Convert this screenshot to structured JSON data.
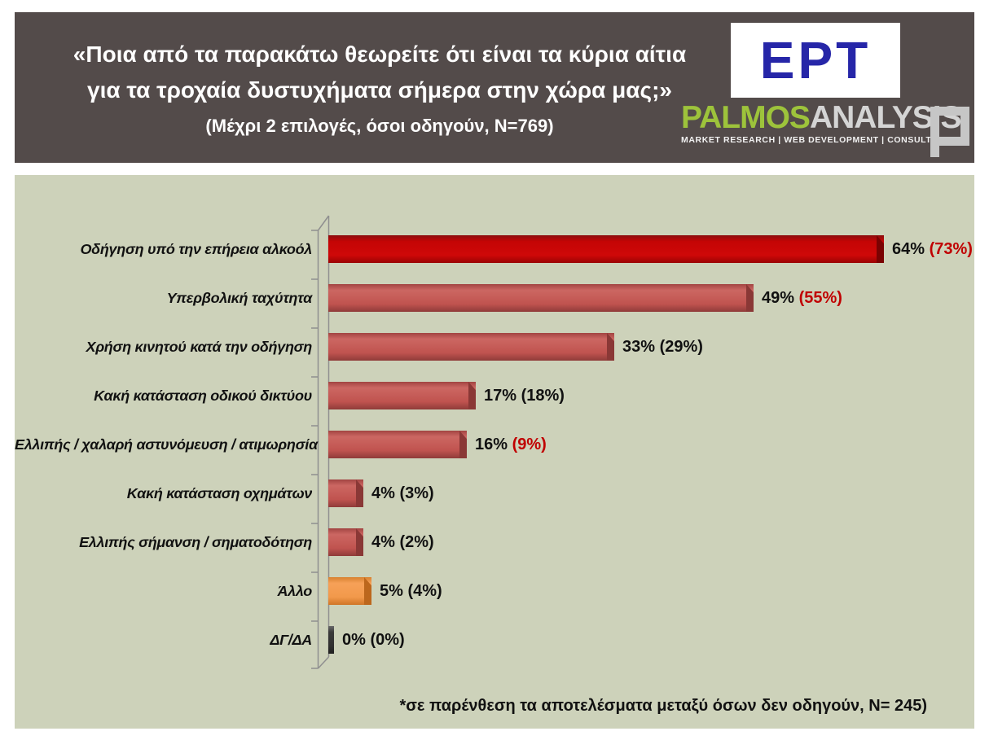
{
  "header": {
    "title_line1": "«Ποια από τα παρακάτω θεωρείτε ότι είναι τα κύρια αίτια",
    "title_line2": "για τα τροχαία δυστυχήματα σήμερα στην χώρα μας;»",
    "subtitle": "(Μέχρι 2 επιλογές, όσοι οδηγούν, N=769)"
  },
  "logos": {
    "ert_text": "ΕΡΤ",
    "palmos_part1": "PALMOS",
    "palmos_part2": "ANALYSIS",
    "palmos_tagline": "MARKET RESEARCH | WEB DEVELOPMENT | CONSULTING"
  },
  "colors": {
    "header_bg": "#534b4a",
    "panel_bg": "#cdd2ba",
    "ert_blue": "#2626a8",
    "palmos_green": "#9dc33b",
    "accent_red": "#c00000"
  },
  "chart_data": {
    "type": "bar",
    "orientation": "horizontal",
    "title": "",
    "xlabel": "",
    "ylabel": "",
    "categories": [
      "Οδήγηση υπό την επήρεια αλκοόλ",
      "Υπερβολική ταχύτητα",
      "Χρήση κινητού κατά την οδήγηση",
      "Κακή κατάσταση οδικού δικτύου",
      "Ελλιπής / χαλαρή αστυνόμευση / ατιμωρησία",
      "Κακή κατάσταση οχημάτων",
      "Ελλιπής σήμανση / σηματοδότηση",
      "Άλλο",
      "ΔΓ/ΔΑ"
    ],
    "series": [
      {
        "name": "Όσοι οδηγούν (N=769)",
        "values": [
          64,
          49,
          33,
          17,
          16,
          4,
          4,
          5,
          0
        ]
      },
      {
        "name": "Όσοι δεν οδηγούν (N=245), σε παρένθεση",
        "values": [
          73,
          55,
          29,
          18,
          9,
          3,
          2,
          4,
          0
        ]
      }
    ],
    "value_labels": [
      "64% (73%)",
      "49% (55%)",
      "33% (29%)",
      "17% (18%)",
      "16% (9%)",
      "4% (3%)",
      "4% (2%)",
      "5% (4%)",
      "0% (0%)"
    ],
    "paren_red_rows": [
      0,
      1,
      4
    ],
    "bar_color_keys": [
      "highlight",
      "default",
      "default",
      "default",
      "default",
      "default",
      "default",
      "other",
      "none"
    ],
    "bar_colors": {
      "highlight": "#c00000",
      "default": "#c0504d",
      "other": "#f79646",
      "none": "#404040"
    },
    "xlim": [
      0,
      70
    ],
    "grid": false,
    "legend": false
  },
  "footnote": "*σε παρένθεση τα αποτελέσματα μεταξύ όσων δεν οδηγούν, N= 245)"
}
